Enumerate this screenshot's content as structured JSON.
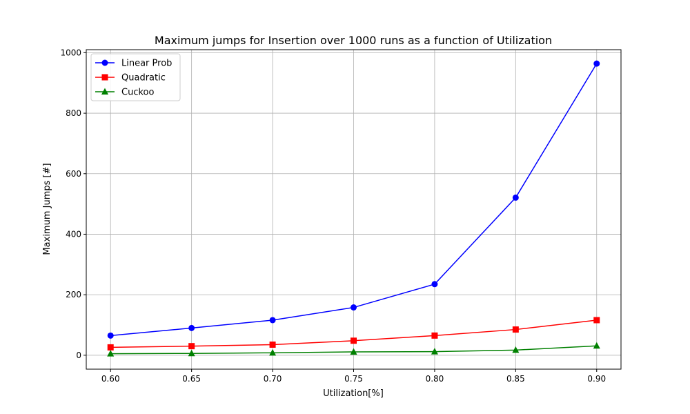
{
  "chart_data": {
    "type": "line",
    "title": "Maximum jumps for Insertion over 1000 runs as a function of Utilization",
    "xlabel": "Utilization[%]",
    "ylabel": "Maximum Jumps [#]",
    "x": [
      0.6,
      0.65,
      0.7,
      0.75,
      0.8,
      0.85,
      0.9
    ],
    "x_tick_labels": [
      "0.60",
      "0.65",
      "0.70",
      "0.75",
      "0.80",
      "0.85",
      "0.90"
    ],
    "y_ticks": [
      0,
      200,
      400,
      600,
      800,
      1000
    ],
    "y_tick_labels": [
      "0",
      "200",
      "400",
      "600",
      "800",
      "1000"
    ],
    "xlim": [
      0.585,
      0.915
    ],
    "ylim": [
      -46,
      1010
    ],
    "grid": true,
    "legend_position": "top-left",
    "series": [
      {
        "name": "Linear Prob",
        "color": "#0000ff",
        "marker": "circle",
        "values": [
          65,
          90,
          116,
          158,
          235,
          521,
          964
        ]
      },
      {
        "name": "Quadratic",
        "color": "#ff0000",
        "marker": "square",
        "values": [
          26,
          30,
          35,
          48,
          65,
          85,
          116
        ]
      },
      {
        "name": "Cuckoo",
        "color": "#008000",
        "marker": "triangle",
        "values": [
          5,
          6,
          8,
          11,
          12,
          17,
          31
        ]
      }
    ]
  }
}
